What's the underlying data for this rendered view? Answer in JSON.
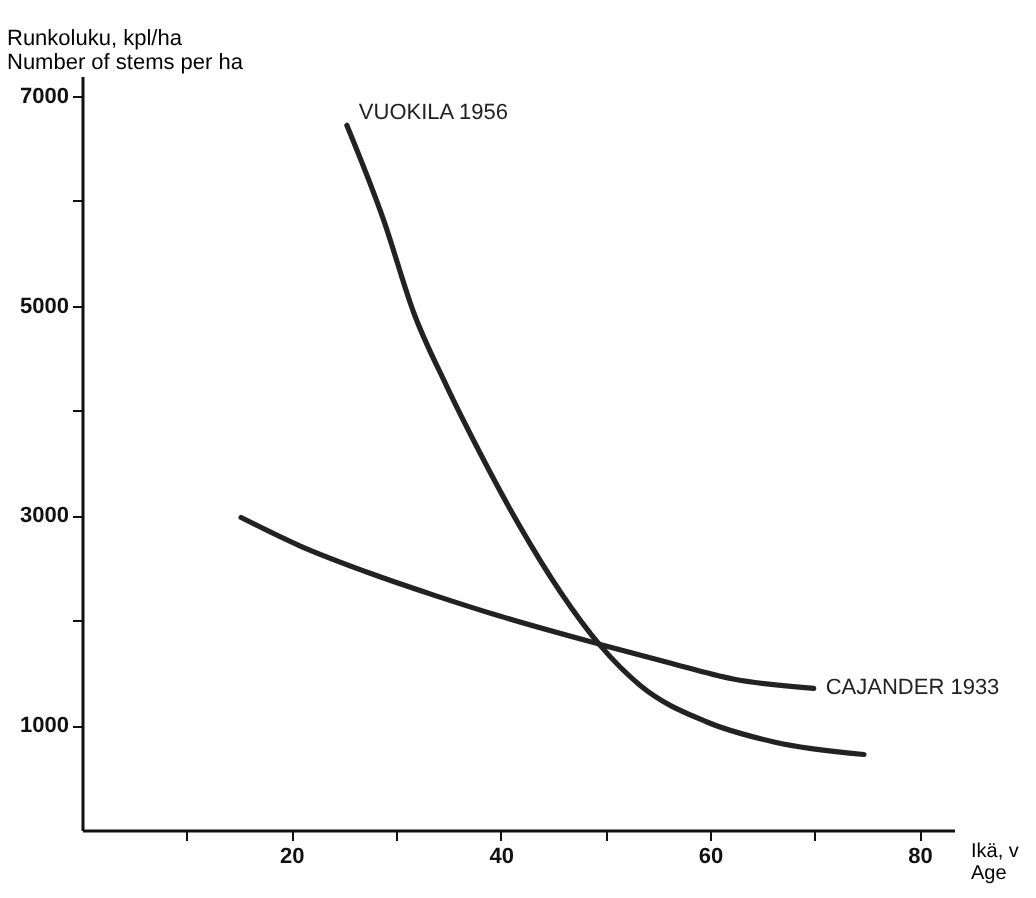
{
  "chart_data": {
    "type": "line",
    "xlabel": "Ikä, v\nAge",
    "ylabel": "Runkoluku, kpl/ha\nNumber of stems per ha",
    "xlim": [
      0,
      83.3
    ],
    "ylim": [
      0,
      7190
    ],
    "xticks": [
      {
        "value": 10,
        "label": null
      },
      20,
      {
        "value": 30,
        "label": null
      },
      40,
      {
        "value": 50,
        "label": null
      },
      60,
      {
        "value": 70,
        "label": null
      },
      80
    ],
    "yticks": [
      1000,
      {
        "value": 2000,
        "label": null
      },
      3000,
      {
        "value": 4000,
        "label": null
      },
      5000,
      {
        "value": 6000,
        "label": null
      },
      7000
    ],
    "grid": false,
    "legend": false,
    "marker": "none",
    "line_style": "solid",
    "series": [
      {
        "name": "VUOKILA 1956",
        "color": "#222222",
        "x": [
          25.3,
          28.8,
          31.7,
          34.8,
          38.0,
          41.8,
          45.7,
          49.5,
          53.3,
          59.7,
          66.1,
          74.7
        ],
        "values": [
          6720,
          5820,
          4930,
          4240,
          3600,
          2900,
          2270,
          1760,
          1380,
          1030,
          840,
          720
        ]
      },
      {
        "name": "CAJANDER 1933",
        "color": "#222222",
        "x": [
          15.2,
          20.8,
          27.2,
          33.6,
          39.9,
          49.5,
          55.9,
          62.2,
          69.9
        ],
        "values": [
          2980,
          2710,
          2460,
          2240,
          2040,
          1770,
          1600,
          1440,
          1350
        ]
      }
    ]
  }
}
